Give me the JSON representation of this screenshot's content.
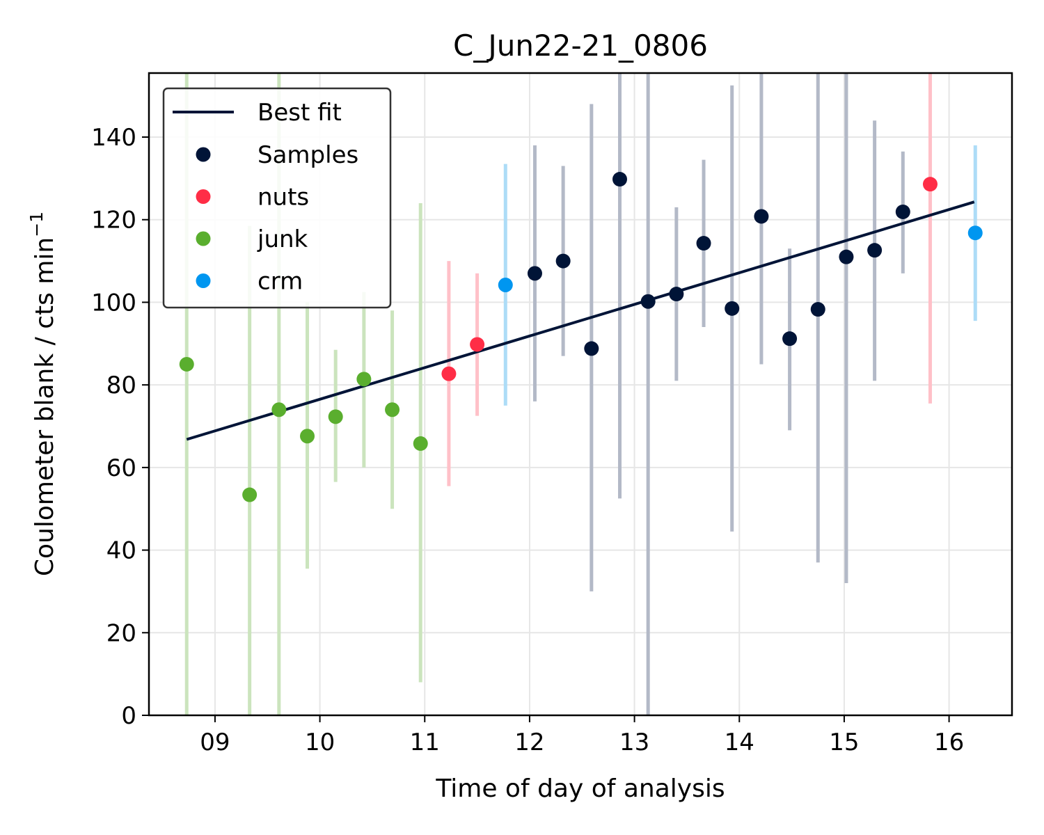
{
  "chart_data": {
    "type": "scatter",
    "title": "C_Jun22-21_0806",
    "xlabel": "Time of day of analysis",
    "ylabel_main": "Coulometer blank / cts min",
    "ylabel_sup": "−1",
    "xlim": [
      8.37,
      16.6
    ],
    "ylim": [
      0,
      155.5
    ],
    "xticks": [
      9,
      10,
      11,
      12,
      13,
      14,
      15,
      16
    ],
    "xtick_labels": [
      "09",
      "10",
      "11",
      "12",
      "13",
      "14",
      "15",
      "16"
    ],
    "yticks": [
      0,
      20,
      40,
      60,
      80,
      100,
      120,
      140
    ],
    "grid": true,
    "legend_position": "top-left",
    "best_fit": {
      "name": "Best fit",
      "color": "#001437",
      "x": [
        8.73,
        16.24
      ],
      "y": [
        66.8,
        124.3
      ]
    },
    "series": [
      {
        "name": "Samples",
        "color": "#001437",
        "bar_color": "#b3b9c7",
        "points": [
          {
            "x": 12.05,
            "y": 107,
            "lo": 76,
            "hi": 138
          },
          {
            "x": 12.32,
            "y": 110,
            "lo": 87,
            "hi": 133
          },
          {
            "x": 12.59,
            "y": 88.8,
            "lo": 30,
            "hi": 148
          },
          {
            "x": 12.86,
            "y": 129.8,
            "lo": 52.5,
            "hi": 160
          },
          {
            "x": 13.13,
            "y": 100.2,
            "lo": 0,
            "hi": 160
          },
          {
            "x": 13.4,
            "y": 102,
            "lo": 81,
            "hi": 123
          },
          {
            "x": 13.66,
            "y": 114.3,
            "lo": 94,
            "hi": 134.5
          },
          {
            "x": 13.93,
            "y": 98.5,
            "lo": 44.5,
            "hi": 152.5
          },
          {
            "x": 14.21,
            "y": 120.8,
            "lo": 85,
            "hi": 157
          },
          {
            "x": 14.48,
            "y": 91.2,
            "lo": 69,
            "hi": 113
          },
          {
            "x": 14.75,
            "y": 98.3,
            "lo": 37,
            "hi": 160
          },
          {
            "x": 15.02,
            "y": 111,
            "lo": 32,
            "hi": 160
          },
          {
            "x": 15.29,
            "y": 112.6,
            "lo": 81,
            "hi": 144
          },
          {
            "x": 15.56,
            "y": 121.9,
            "lo": 107,
            "hi": 136.5
          }
        ]
      },
      {
        "name": "nuts",
        "color": "#ff2d46",
        "bar_color": "#ffc0c8",
        "points": [
          {
            "x": 11.23,
            "y": 82.7,
            "lo": 55.5,
            "hi": 110
          },
          {
            "x": 11.5,
            "y": 89.8,
            "lo": 72.5,
            "hi": 107
          },
          {
            "x": 15.82,
            "y": 128.6,
            "lo": 75.5,
            "hi": 160
          }
        ]
      },
      {
        "name": "junk",
        "color": "#5aae2e",
        "bar_color": "#cbe4bd",
        "points": [
          {
            "x": 8.73,
            "y": 85,
            "lo": 0,
            "hi": 160
          },
          {
            "x": 9.33,
            "y": 53.4,
            "lo": 0,
            "hi": 118.5
          },
          {
            "x": 9.61,
            "y": 74,
            "lo": 0,
            "hi": 160
          },
          {
            "x": 9.88,
            "y": 67.6,
            "lo": 35.5,
            "hi": 100
          },
          {
            "x": 10.15,
            "y": 72.3,
            "lo": 56.5,
            "hi": 88.5
          },
          {
            "x": 10.42,
            "y": 81.4,
            "lo": 60,
            "hi": 102.5
          },
          {
            "x": 10.69,
            "y": 74,
            "lo": 50,
            "hi": 98
          },
          {
            "x": 10.96,
            "y": 65.8,
            "lo": 8,
            "hi": 124
          }
        ]
      },
      {
        "name": "crm",
        "color": "#0096f0",
        "bar_color": "#addcf7",
        "points": [
          {
            "x": 11.77,
            "y": 104.2,
            "lo": 75,
            "hi": 133.5
          },
          {
            "x": 16.25,
            "y": 116.8,
            "lo": 95.5,
            "hi": 138
          }
        ]
      }
    ]
  }
}
